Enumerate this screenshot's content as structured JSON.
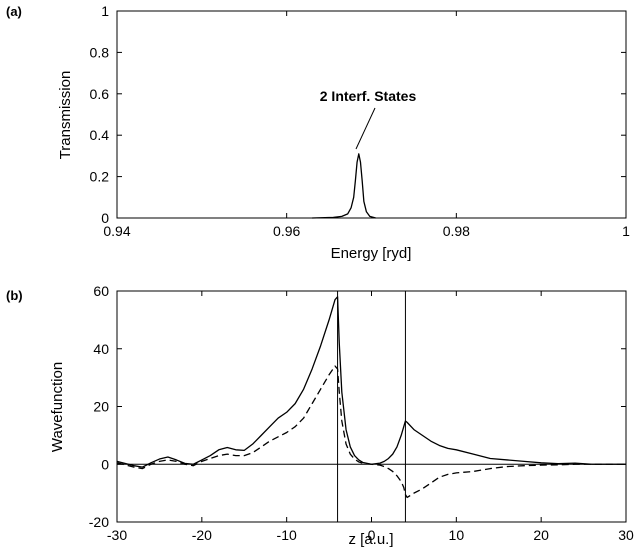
{
  "chart_data": [
    {
      "panel_label": "(a)",
      "type": "line",
      "xlabel": "Energy [ryd]",
      "ylabel": "Transmission",
      "xlim": [
        0.94,
        1.0
      ],
      "ylim": [
        0,
        1
      ],
      "xticks": [
        "0.94",
        "0.96",
        "0.98",
        "1"
      ],
      "yticks": [
        "0",
        "0.2",
        "0.4",
        "0.6",
        "0.8",
        "1"
      ],
      "annotation": {
        "text": "2 Interf. States",
        "target": [
          0.9685,
          0.31
        ]
      },
      "series": [
        {
          "style": "solid",
          "x": [
            0.963,
            0.9655,
            0.9665,
            0.9672,
            0.9676,
            0.9679,
            0.9681,
            0.9683,
            0.9685,
            0.9687,
            0.9689,
            0.9691,
            0.9694,
            0.9698,
            0.9705
          ],
          "y": [
            0,
            0.003,
            0.008,
            0.02,
            0.05,
            0.1,
            0.18,
            0.27,
            0.31,
            0.27,
            0.18,
            0.08,
            0.03,
            0.008,
            0
          ]
        }
      ]
    },
    {
      "panel_label": "(b)",
      "type": "line",
      "xlabel": "z [a.u.]",
      "ylabel": "Wavefunction",
      "xlim": [
        -30,
        30
      ],
      "ylim": [
        -20,
        60
      ],
      "xticks": [
        "-30",
        "-20",
        "-10",
        "0",
        "10",
        "20",
        "30"
      ],
      "yticks": [
        "-20",
        "0",
        "20",
        "40",
        "60"
      ],
      "vlines": [
        -4,
        4
      ],
      "hline": 0,
      "series": [
        {
          "style": "solid",
          "x": [
            -30,
            -28,
            -27,
            -26,
            -25,
            -24,
            -23,
            -22,
            -21,
            -20,
            -19,
            -18,
            -17,
            -16,
            -15,
            -14,
            -13,
            -12,
            -11,
            -10,
            -9,
            -8,
            -7,
            -6,
            -5,
            -4.3,
            -4,
            -3.8,
            -3.5,
            -3,
            -2.5,
            -2,
            -1.5,
            -1,
            0,
            1,
            1.5,
            2,
            2.5,
            3,
            3.5,
            3.8,
            4,
            4.2,
            5,
            6,
            7,
            8,
            9,
            10,
            12,
            14,
            16,
            18,
            20,
            22,
            24,
            26,
            28,
            30
          ],
          "y": [
            1,
            -0.5,
            -1,
            0.5,
            1.8,
            2.5,
            1.5,
            0.3,
            0,
            1.5,
            3,
            5,
            5.8,
            5,
            4.8,
            7,
            10,
            13,
            16,
            18,
            21,
            26,
            33,
            41,
            50,
            57,
            58,
            42,
            25,
            12,
            6,
            3,
            1.5,
            0.6,
            0,
            0.4,
            1,
            2,
            3.5,
            6,
            10,
            13,
            15,
            14.5,
            12,
            10,
            8,
            6.5,
            5.5,
            5,
            3.5,
            2,
            1.5,
            1,
            0.5,
            0.2,
            0.4,
            0,
            0,
            0
          ]
        },
        {
          "style": "dashed",
          "x": [
            -30,
            -28,
            -27,
            -26,
            -25,
            -24,
            -23,
            -22,
            -21,
            -20,
            -19,
            -18,
            -17,
            -16,
            -15,
            -14,
            -13,
            -12,
            -11,
            -10,
            -9,
            -8,
            -7,
            -6,
            -5,
            -4.3,
            -4,
            -3.8,
            -3.5,
            -3,
            -2.5,
            -2,
            -1.5,
            -1,
            0,
            1,
            1.5,
            2,
            2.5,
            3,
            3.5,
            3.8,
            4,
            4.2,
            5,
            6,
            7,
            8,
            9,
            10,
            12,
            14,
            16,
            18,
            20,
            22,
            24,
            26,
            28,
            30
          ],
          "y": [
            0.5,
            -1,
            -1.5,
            0,
            1,
            1.5,
            1,
            0,
            -0.5,
            1,
            2,
            3,
            3.5,
            3,
            3,
            4,
            6,
            8,
            9.5,
            11,
            13,
            16,
            21,
            26,
            31,
            34,
            33,
            25,
            15,
            7,
            3.5,
            1.8,
            0.8,
            0.3,
            0,
            -0.3,
            -0.8,
            -1.5,
            -2.5,
            -4,
            -6,
            -8,
            -10.5,
            -11.5,
            -10,
            -8.5,
            -6.5,
            -4.5,
            -3.5,
            -3,
            -2.5,
            -1.5,
            -0.8,
            -0.5,
            -0.3,
            -0.2,
            0,
            0,
            0,
            0
          ]
        }
      ]
    }
  ]
}
